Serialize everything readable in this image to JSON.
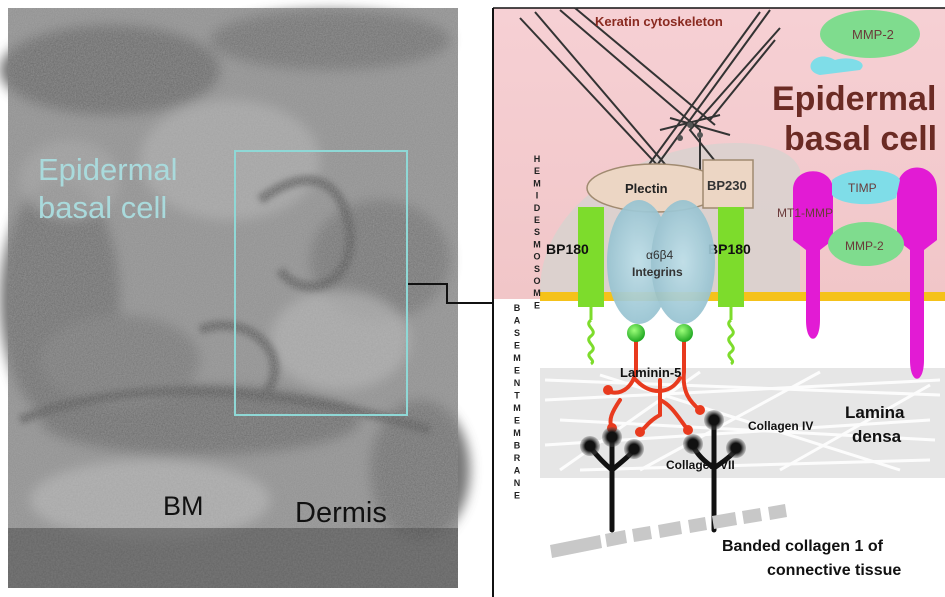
{
  "micrograph": {
    "epidermal_line1": "Epidermal",
    "epidermal_line2": "basal cell",
    "bm": "BM",
    "dermis": "Dermis"
  },
  "schematic": {
    "keratin": "Keratin cytoskeleton",
    "title_line1": "Epidermal",
    "title_line2": "basal cell",
    "hemidesmosome": "HEMIDESMOSOME",
    "basement_membrane": "BASEMENTMEMBRANE",
    "plectin": "Plectin",
    "bp230": "BP230",
    "bp180_left": "BP180",
    "bp180_right": "BP180",
    "integrin_line1": "α6β4",
    "integrin_line2": "Integrins",
    "mmp2_top": "MMP-2",
    "timp": "TIMP",
    "mt1mmp": "MT1-MMP",
    "mmp2_mid": "MMP-2",
    "laminin": "Laminin-5",
    "collagen4": "Collagen IV",
    "collagen7": "Collagen VII",
    "lamina_line1": "Lamina",
    "lamina_line2": "densa",
    "banded_line1": "Banded collagen 1 of",
    "banded_line2": "connective tissue"
  },
  "colors": {
    "cell_background": "#f3cbcd",
    "membrane": "#f5c21a",
    "bp180": "#7ddc2c",
    "laminin": "#e83a1e",
    "mmp": "#e21bd4",
    "integrin": "#9fc6d4",
    "plaque": "#d8d2cf",
    "mmp2_fill": "#7fdc8e",
    "timp_fill": "#7fdde8",
    "micro_label": "#a9dadc",
    "box_outline": "#8fd8d6"
  },
  "icons": {
    "bp180": "bp180-receptor-shape",
    "integrin": "integrin-heterodimer-shape",
    "collagen7": "anchoring-fibril-shape"
  }
}
